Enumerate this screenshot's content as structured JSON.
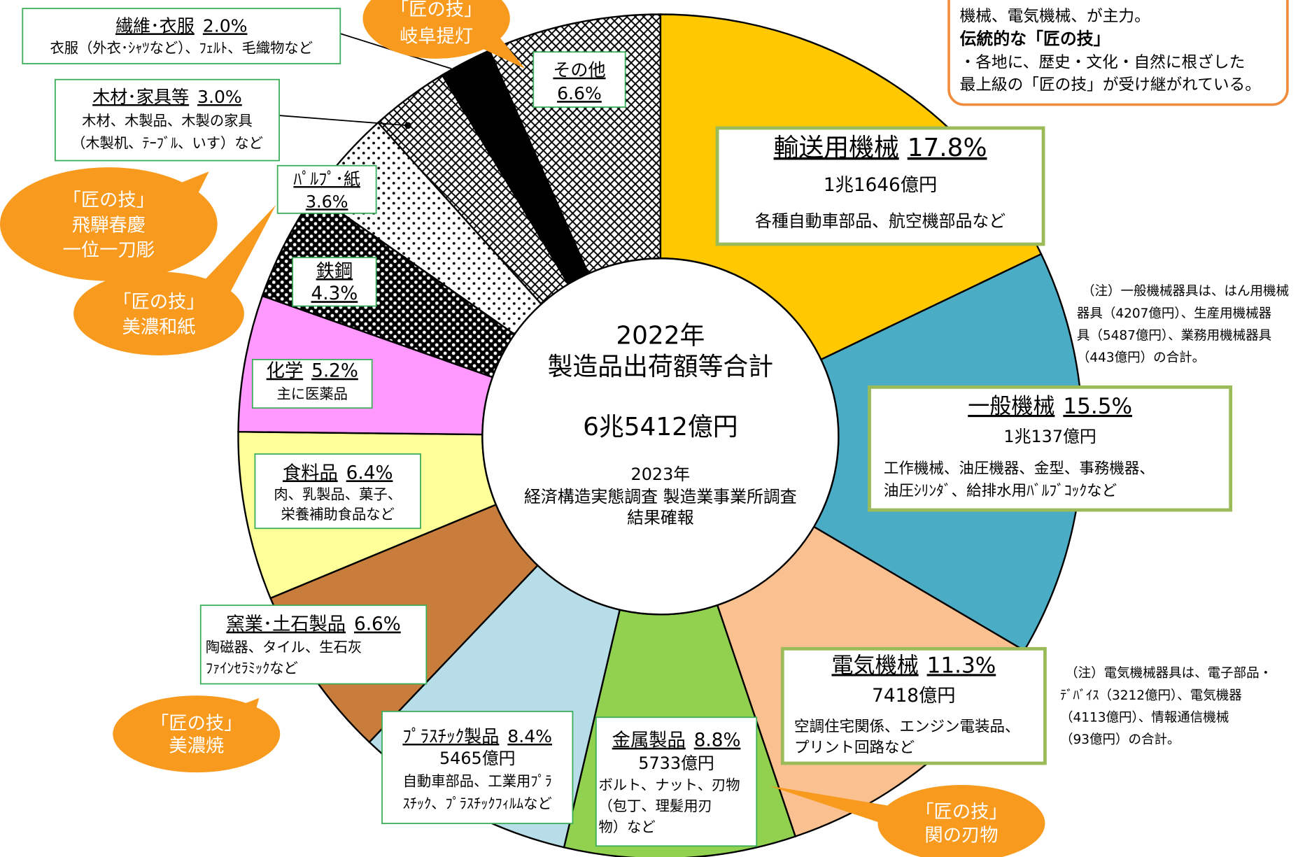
{
  "chart_data": {
    "type": "donut",
    "categories": [
      "輸送用機械",
      "一般機械",
      "電気機械",
      "金属製品",
      "ﾌﾟﾗｽﾁｯｸ製品",
      "窯業･土石製品",
      "食料品",
      "化学",
      "鉄鋼",
      "ﾊﾟﾙﾌﾟ･紙",
      "木材･家具等",
      "繊維･衣服",
      "その他"
    ],
    "values": [
      17.8,
      15.5,
      11.3,
      8.8,
      8.4,
      6.6,
      6.4,
      5.2,
      4.3,
      3.6,
      3.0,
      2.0,
      6.6
    ],
    "value_labels": [
      "17.8%",
      "15.5%",
      "11.3%",
      "8.8%",
      "8.4%",
      "6.6%",
      "6.4%",
      "5.2%",
      "4.3%",
      "3.6%",
      "3.0%",
      "2.0%",
      "6.6%"
    ],
    "colors": [
      "#ffc800",
      "#4bacc6",
      "#fac090",
      "#92d050",
      "#b7dde8",
      "#c87d3c",
      "#ffff99",
      "#ff99ff",
      "#000000",
      "#ffffff",
      "#ffffff",
      "#000000",
      "#ffffff"
    ],
    "fill_patterns": [
      null,
      null,
      null,
      null,
      null,
      null,
      null,
      null,
      "white-dots",
      "dots",
      "cross",
      null,
      "cross"
    ],
    "amounts": [
      "1兆1646億円",
      "1兆137億円",
      "7418億円",
      "5733億円",
      "5465億円",
      null,
      null,
      null,
      null,
      null,
      null,
      null,
      null
    ],
    "descriptions": [
      [
        "各種自動車部品、航空機部品など"
      ],
      [
        "工作機械、油圧機器、金型、事務機器、",
        "油圧ｼﾘﾝﾀﾞ、給排水用ﾊﾞﾙﾌﾞｺｯｸなど"
      ],
      [
        "空調住宅関係、エンジン電装品、",
        "プリント回路など"
      ],
      [
        "ボルト、ナット、刃物",
        "（包丁、理髪用刃",
        "物）など"
      ],
      [
        "自動車部品、工業用ﾌﾟﾗ",
        "ｽﾁｯｸ、ﾌﾟﾗｽﾁｯｸﾌｨﾙﾑなど"
      ],
      [
        "陶磁器、タイル、生石灰",
        "ﾌｧｲﾝｾﾗﾐｯｸなど"
      ],
      [
        "肉、乳製品、菓子、",
        "栄養補助食品など"
      ],
      [
        "主に医薬品"
      ],
      null,
      null,
      [
        "木材、木製品、木製の家具",
        "（木製机、ﾃｰﾌﾞﾙ、いす）など"
      ],
      [
        "衣服（外衣･ｼｬﾂなど）、ﾌｪﾙﾄ、毛織物など"
      ],
      null
    ],
    "center_text": [
      "2022年",
      "製造品出荷額等合計",
      "6兆5412億円",
      "2023年",
      "経済構造実態調査 製造業事業所調査",
      "結果確報"
    ]
  },
  "callouts": [
    {
      "heading": "「匠の技」",
      "lines": [
        "岐阜提灯"
      ]
    },
    {
      "heading": "「匠の技」",
      "lines": [
        "飛騨春慶",
        "一位一刀彫"
      ]
    },
    {
      "heading": "「匠の技」",
      "lines": [
        "美濃和紙"
      ]
    },
    {
      "heading": "「匠の技」",
      "lines": [
        "美濃焼"
      ]
    },
    {
      "heading": "「匠の技」",
      "lines": [
        "関の刃物"
      ]
    }
  ],
  "notes": [
    [
      "（注）一般機械器具は、はん用機械",
      "器具（4207億円）、生産用機械器",
      "具（5487億円）、業務用機械器具",
      "（443億円）の合計。"
    ],
    [
      "（注）電気機械器具は、電子部品・",
      "ﾃﾞﾊﾞｲｽ（3212億円）、電気機器",
      "（4113億円）、情報通信機械",
      "（93億円）の合計。"
    ]
  ],
  "summary_box": {
    "lines": [
      "機械、電気機械、が主力。"
    ],
    "heading": "伝統的な「匠の技」",
    "body": [
      "・各地に、歴史・文化・自然に根ざした",
      "最上級の「匠の技」が受け継がれている。"
    ]
  }
}
